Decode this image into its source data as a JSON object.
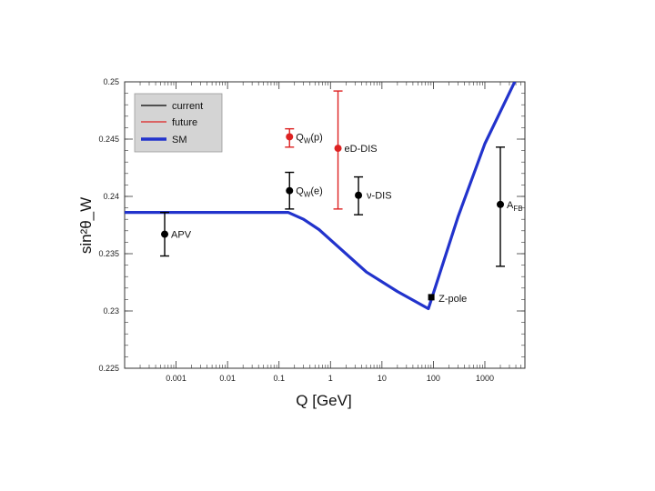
{
  "chart_data": {
    "type": "scatter",
    "title": "",
    "xlabel": "Q [GeV]",
    "ylabel": "sin²θ_W",
    "x_scale": "log",
    "xlim": [
      0.0001,
      6000
    ],
    "ylim": [
      0.225,
      0.25
    ],
    "x_ticks": [
      {
        "value": 0.001,
        "label": "0.001"
      },
      {
        "value": 0.01,
        "label": "0.01"
      },
      {
        "value": 0.1,
        "label": "0.1"
      },
      {
        "value": 1,
        "label": "1"
      },
      {
        "value": 10,
        "label": "10"
      },
      {
        "value": 100,
        "label": "100"
      },
      {
        "value": 1000,
        "label": "1000"
      }
    ],
    "y_ticks": [
      {
        "value": 0.225,
        "label": "0.225"
      },
      {
        "value": 0.23,
        "label": "0.23"
      },
      {
        "value": 0.235,
        "label": "0.235"
      },
      {
        "value": 0.24,
        "label": "0.24"
      },
      {
        "value": 0.245,
        "label": "0.245"
      },
      {
        "value": 0.25,
        "label": "0.25"
      }
    ],
    "legend": {
      "placement": "top-left",
      "entries": [
        {
          "label": "current",
          "color": "#000000",
          "style": "thin-line"
        },
        {
          "label": "future",
          "color": "#dd2222",
          "style": "thin-line"
        },
        {
          "label": "SM",
          "color": "#2233cc",
          "style": "thick-line"
        }
      ]
    },
    "series": [
      {
        "name": "SM",
        "kind": "line",
        "color": "#2233cc",
        "points": [
          {
            "x": 0.0001,
            "y": 0.2386
          },
          {
            "x": 0.15,
            "y": 0.2386
          },
          {
            "x": 0.3,
            "y": 0.238
          },
          {
            "x": 0.6,
            "y": 0.2371
          },
          {
            "x": 1.5,
            "y": 0.2355
          },
          {
            "x": 5,
            "y": 0.2334
          },
          {
            "x": 20,
            "y": 0.2317
          },
          {
            "x": 80,
            "y": 0.2302
          },
          {
            "x": 300,
            "y": 0.2382
          },
          {
            "x": 1000,
            "y": 0.2446
          },
          {
            "x": 4000,
            "y": 0.2502
          }
        ]
      },
      {
        "name": "current",
        "kind": "errorbar",
        "color": "#000000",
        "points": [
          {
            "label": "APV",
            "x": 0.0006,
            "y": 0.2367,
            "ylo": 0.2348,
            "yhi": 0.2386,
            "marker": "circle"
          },
          {
            "label": "Q_W(e)",
            "x": 0.16,
            "y": 0.2405,
            "ylo": 0.2389,
            "yhi": 0.2421,
            "marker": "circle"
          },
          {
            "label": "ν-DIS",
            "x": 3.5,
            "y": 0.2401,
            "ylo": 0.2384,
            "yhi": 0.2417,
            "marker": "circle"
          },
          {
            "label": "Z-pole",
            "x": 91,
            "y": 0.2312,
            "ylo": 0.2312,
            "yhi": 0.2312,
            "marker": "square"
          },
          {
            "label": "A_FB",
            "x": 2000,
            "y": 0.2393,
            "ylo": 0.2339,
            "yhi": 0.2443,
            "marker": "circle"
          }
        ]
      },
      {
        "name": "future",
        "kind": "errorbar",
        "color": "#dd2222",
        "points": [
          {
            "label": "Q_W(p)",
            "x": 0.16,
            "y": 0.2452,
            "ylo": 0.2443,
            "yhi": 0.2459,
            "marker": "circle"
          },
          {
            "label": "eD-DIS",
            "x": 1.4,
            "y": 0.2442,
            "ylo": 0.2389,
            "yhi": 0.2492,
            "marker": "circle"
          }
        ]
      }
    ]
  }
}
